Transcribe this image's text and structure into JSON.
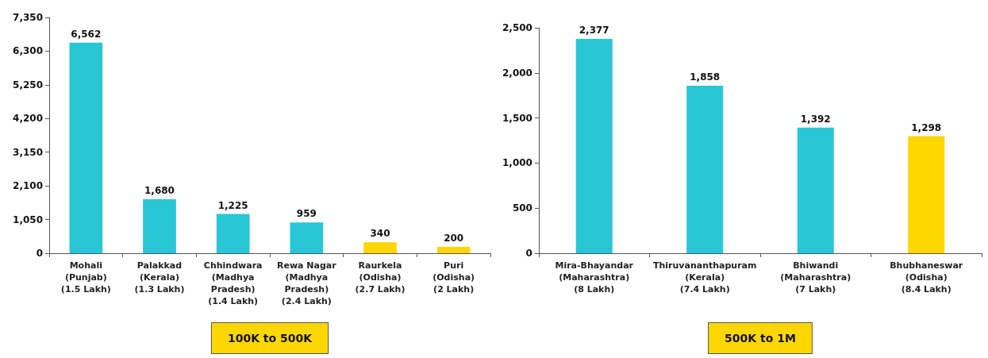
{
  "chart_data": [
    {
      "type": "bar",
      "xlabel": "100K to 500K",
      "categories": [
        "Mohali\n(Punjab)\n(1.5 Lakh)",
        "Palakkad\n(Kerala)\n(1.3 Lakh)",
        "Chhindwara\n(Madhya\nPradesh)\n(1.4 Lakh)",
        "Rewa Nagar\n(Madhya\nPradesh)\n(2.4 Lakh)",
        "Raurkela\n(Odisha)\n(2.7 Lakh)",
        "Puri\n(Odisha)\n(2 Lakh)"
      ],
      "values": [
        6562,
        1680,
        1225,
        959,
        340,
        200
      ],
      "colors": [
        "#29c6d6",
        "#29c6d6",
        "#29c6d6",
        "#29c6d6",
        "#ffd700",
        "#ffd700"
      ],
      "value_labels": [
        "6,562",
        "1,680",
        "1,225",
        "959",
        "340",
        "200"
      ],
      "ylim": [
        0,
        7350
      ],
      "yticks": [
        {
          "value": 0,
          "label": "0"
        },
        {
          "value": 1050,
          "label": "1,050"
        },
        {
          "value": 2100,
          "label": "2,100"
        },
        {
          "value": 3150,
          "label": "3,150"
        },
        {
          "value": 4200,
          "label": "4,200"
        },
        {
          "value": 5250,
          "label": "5,250"
        },
        {
          "value": 6300,
          "label": "6,300"
        },
        {
          "value": 7350,
          "label": "7,350"
        }
      ],
      "grid": false
    },
    {
      "type": "bar",
      "xlabel": "500K to 1M",
      "categories": [
        "Mira-Bhayandar\n(Maharashtra)\n(8 Lakh)",
        "Thiruvananthapuram\n(Kerala)\n(7.4 Lakh)",
        "Bhiwandi\n(Maharashtra)\n(7 Lakh)",
        "Bhubhaneswar\n(Odisha)\n(8.4 Lakh)"
      ],
      "values": [
        2377,
        1858,
        1392,
        1298
      ],
      "colors": [
        "#29c6d6",
        "#29c6d6",
        "#29c6d6",
        "#ffd700"
      ],
      "value_labels": [
        "2,377",
        "1,858",
        "1,392",
        "1,298"
      ],
      "ylim": [
        0,
        2500
      ],
      "yticks": [
        {
          "value": 0,
          "label": "0"
        },
        {
          "value": 500,
          "label": "500"
        },
        {
          "value": 1000,
          "label": "1,000"
        },
        {
          "value": 1500,
          "label": "1,500"
        },
        {
          "value": 2000,
          "label": "2,000"
        },
        {
          "value": 2500,
          "label": "2,500"
        }
      ],
      "grid": false
    }
  ]
}
